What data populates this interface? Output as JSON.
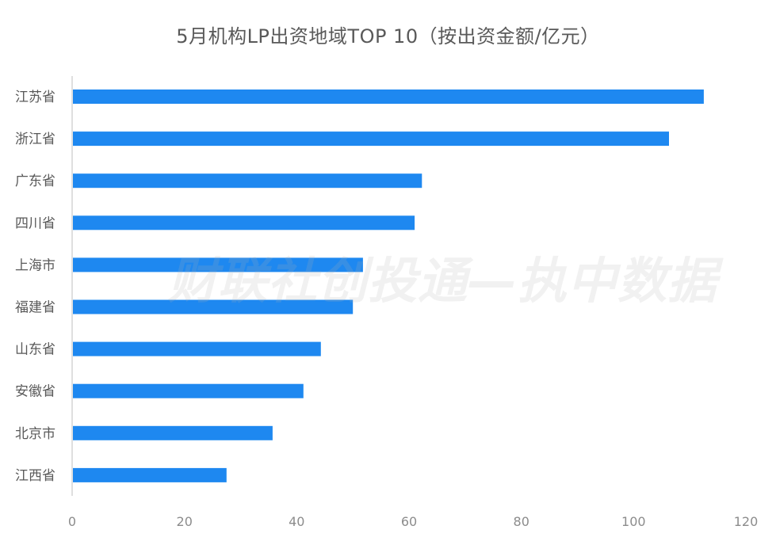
{
  "chart_data": {
    "type": "bar",
    "orientation": "horizontal",
    "title": "5月机构LP出资地域TOP 10（按出资金额/亿元）",
    "categories": [
      "江苏省",
      "浙江省",
      "广东省",
      "四川省",
      "上海市",
      "福建省",
      "山东省",
      "安徽省",
      "北京市",
      "江西省"
    ],
    "values": [
      112.5,
      106.3,
      62.3,
      61.0,
      51.8,
      50.0,
      44.3,
      41.2,
      35.7,
      27.5
    ],
    "xlim": [
      0,
      120
    ],
    "xticks": [
      "0",
      "20",
      "40",
      "60",
      "80",
      "100",
      "120"
    ],
    "xlabel": "",
    "ylabel": "",
    "grid": false,
    "colors": {
      "bar": "#1e88f0",
      "axis": "#bfbfbf"
    }
  },
  "watermark": "财联社创投通—执中数据"
}
